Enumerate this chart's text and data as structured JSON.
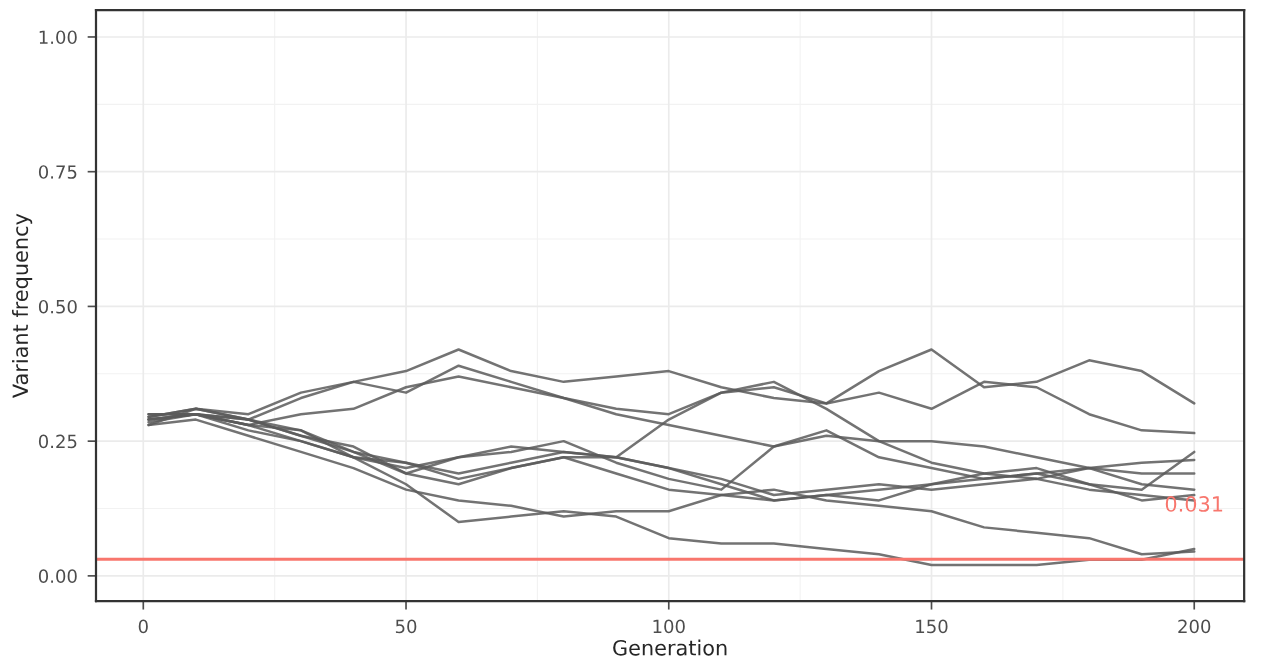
{
  "chart_data": {
    "type": "line",
    "xlabel": "Generation",
    "ylabel": "Variant frequency",
    "x": [
      1,
      10,
      20,
      30,
      40,
      50,
      60,
      70,
      80,
      90,
      100,
      110,
      120,
      130,
      140,
      150,
      160,
      170,
      180,
      190,
      200
    ],
    "series": [
      {
        "color": "#5a5a5a",
        "values": [
          0.29,
          0.3,
          0.29,
          0.33,
          0.36,
          0.38,
          0.42,
          0.38,
          0.36,
          0.37,
          0.38,
          0.35,
          0.33,
          0.32,
          0.38,
          0.42,
          0.35,
          0.36,
          0.4,
          0.38,
          0.32
        ]
      },
      {
        "color": "#5a5a5a",
        "values": [
          0.295,
          0.31,
          0.3,
          0.34,
          0.36,
          0.34,
          0.39,
          0.36,
          0.33,
          0.31,
          0.3,
          0.34,
          0.35,
          0.32,
          0.34,
          0.31,
          0.36,
          0.35,
          0.3,
          0.27,
          0.265
        ]
      },
      {
        "color": "#5a5a5a",
        "values": [
          0.3,
          0.3,
          0.28,
          0.3,
          0.31,
          0.35,
          0.37,
          0.35,
          0.33,
          0.3,
          0.28,
          0.26,
          0.24,
          0.27,
          0.22,
          0.2,
          0.18,
          0.19,
          0.17,
          0.16,
          0.23
        ]
      },
      {
        "color": "#5a5a5a",
        "values": [
          0.295,
          0.31,
          0.29,
          0.26,
          0.23,
          0.21,
          0.18,
          0.2,
          0.22,
          0.19,
          0.16,
          0.15,
          0.14,
          0.15,
          0.14,
          0.17,
          0.18,
          0.19,
          0.2,
          0.19,
          0.19
        ]
      },
      {
        "color": "#5a5a5a",
        "values": [
          0.285,
          0.3,
          0.28,
          0.25,
          0.22,
          0.2,
          0.22,
          0.23,
          0.25,
          0.21,
          0.18,
          0.16,
          0.24,
          0.26,
          0.25,
          0.25,
          0.24,
          0.22,
          0.2,
          0.17,
          0.16
        ]
      },
      {
        "color": "#5a5a5a",
        "values": [
          0.29,
          0.3,
          0.29,
          0.26,
          0.24,
          0.19,
          0.17,
          0.2,
          0.22,
          0.22,
          0.29,
          0.34,
          0.36,
          0.31,
          0.25,
          0.21,
          0.19,
          0.18,
          0.2,
          0.21,
          0.215
        ]
      },
      {
        "color": "#5a5a5a",
        "values": [
          0.29,
          0.3,
          0.27,
          0.25,
          0.22,
          0.17,
          0.1,
          0.11,
          0.12,
          0.11,
          0.07,
          0.06,
          0.06,
          0.05,
          0.04,
          0.02,
          0.02,
          0.02,
          0.03,
          0.03,
          0.05
        ]
      },
      {
        "color": "#5a5a5a",
        "values": [
          0.28,
          0.29,
          0.26,
          0.23,
          0.2,
          0.16,
          0.14,
          0.13,
          0.11,
          0.12,
          0.12,
          0.15,
          0.16,
          0.14,
          0.13,
          0.12,
          0.09,
          0.08,
          0.07,
          0.04,
          0.045
        ]
      },
      {
        "color": "#5a5a5a",
        "values": [
          0.3,
          0.3,
          0.28,
          0.27,
          0.22,
          0.21,
          0.19,
          0.21,
          0.23,
          0.22,
          0.2,
          0.18,
          0.15,
          0.16,
          0.17,
          0.16,
          0.17,
          0.18,
          0.16,
          0.15,
          0.14
        ]
      },
      {
        "color": "#5a5a5a",
        "values": [
          0.28,
          0.31,
          0.29,
          0.27,
          0.23,
          0.19,
          0.22,
          0.24,
          0.23,
          0.22,
          0.2,
          0.17,
          0.14,
          0.15,
          0.16,
          0.17,
          0.19,
          0.2,
          0.17,
          0.14,
          0.15
        ]
      }
    ],
    "xlim": [
      -9,
      209.5
    ],
    "xticks": [
      0,
      50,
      100,
      150,
      200
    ],
    "ylim": [
      -0.047,
      1.05
    ],
    "yticks": [
      {
        "value": 0,
        "label": "0.00"
      },
      {
        "value": 0.25,
        "label": "0.25"
      },
      {
        "value": 0.5,
        "label": "0.50"
      },
      {
        "value": 0.75,
        "label": "0.75"
      },
      {
        "value": 1,
        "label": "1.00"
      }
    ],
    "ref_lines": [
      {
        "axis": "y",
        "value": 0.031,
        "color": "#f8766d"
      }
    ],
    "annotations": [
      {
        "text": "0.031",
        "x": 200,
        "y": 0.13
      }
    ],
    "grid": true,
    "legend": false,
    "marker": "none",
    "line_style": "solid"
  }
}
